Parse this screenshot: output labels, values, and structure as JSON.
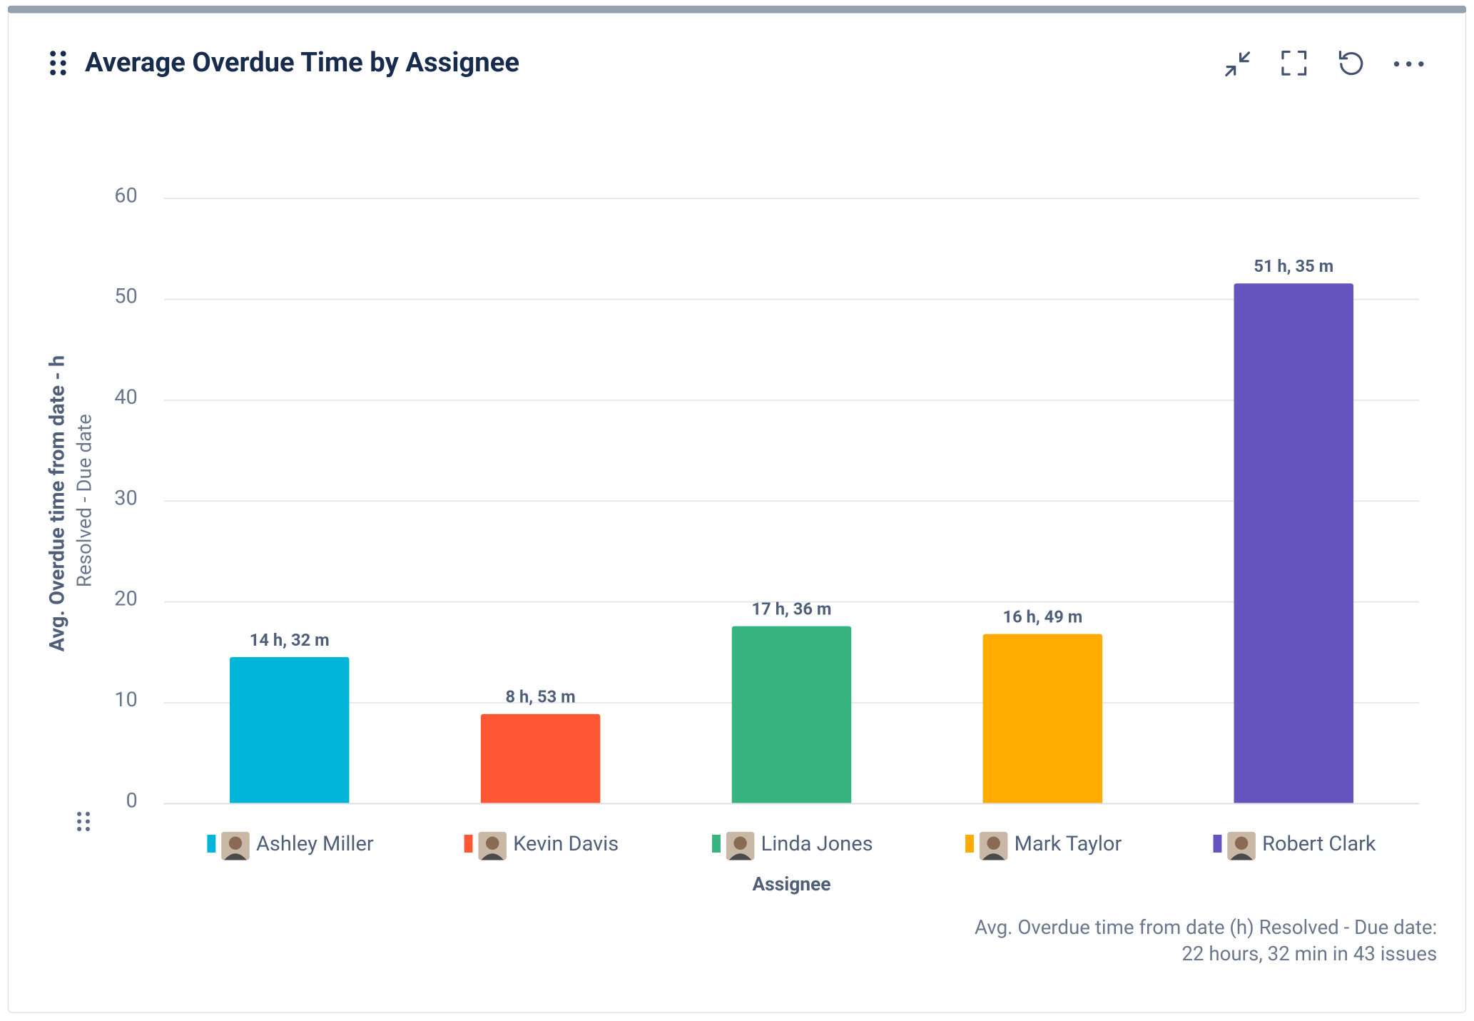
{
  "chart_data": {
    "type": "bar",
    "title": "Average Overdue Time by Assignee",
    "y_axis_label": "Avg. Overdue time from date - h",
    "y_axis_sublabel": "Resolved - Due date",
    "x_axis_label": "Assignee",
    "categories": [
      "Ashley Miller",
      "Kevin Davis",
      "Linda Jones",
      "Mark Taylor",
      "Robert Clark"
    ],
    "values": [
      14.533,
      8.883,
      17.6,
      16.817,
      51.583
    ],
    "value_labels": [
      "14 h, 32 m",
      "8 h, 53 m",
      "17 h, 36 m",
      "16 h, 49 m",
      "51 h, 35 m"
    ],
    "colors": [
      "#00b5d8",
      "#ff5733",
      "#36b37e",
      "#ffab00",
      "#6554c0"
    ],
    "ylim": [
      0,
      60
    ],
    "yticks": [
      0,
      10,
      20,
      30,
      40,
      50,
      60
    ],
    "grid": true,
    "summary": [
      "Avg. Overdue time from date (h) Resolved - Due date:",
      "22 hours, 32 min in 43 issues"
    ]
  }
}
